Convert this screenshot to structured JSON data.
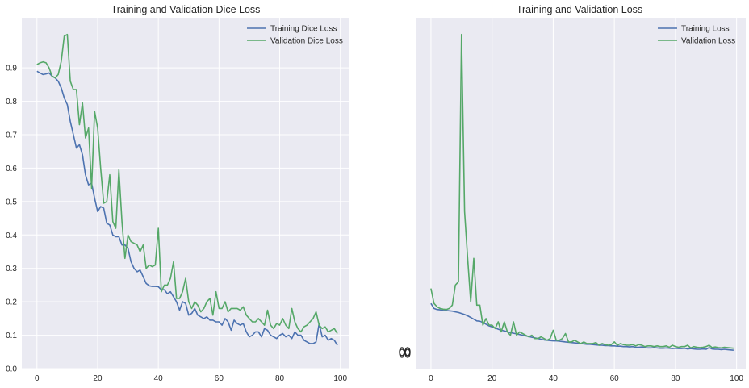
{
  "colors": {
    "background": "#EAEAF2",
    "training": "#4C72B0",
    "validation": "#55A868"
  },
  "chart_data": [
    {
      "type": "line",
      "title": "Training and Validation Dice Loss",
      "xlabel": "",
      "ylabel": "",
      "xlim": [
        -5,
        103
      ],
      "ylim": [
        0.0,
        1.05
      ],
      "xticks": [
        0,
        20,
        40,
        60,
        80,
        100
      ],
      "yticks": [
        0.0,
        0.1,
        0.2,
        0.3,
        0.4,
        0.5,
        0.6,
        0.7,
        0.8,
        0.9
      ],
      "ytick_labels": [
        "0.0",
        "0.1",
        "0.2",
        "0.3",
        "0.4",
        "0.5",
        "0.6",
        "0.7",
        "0.8",
        "0.9"
      ],
      "grid": true,
      "legend_position": "top-right",
      "series": [
        {
          "name": "Training Dice Loss",
          "color": "#4C72B0",
          "x": [
            0,
            1,
            2,
            3,
            4,
            5,
            6,
            7,
            8,
            9,
            10,
            11,
            12,
            13,
            14,
            15,
            16,
            17,
            18,
            19,
            20,
            21,
            22,
            23,
            24,
            25,
            26,
            27,
            28,
            29,
            30,
            31,
            32,
            33,
            34,
            35,
            36,
            37,
            38,
            39,
            40,
            41,
            42,
            43,
            44,
            45,
            46,
            47,
            48,
            49,
            50,
            51,
            52,
            53,
            54,
            55,
            56,
            57,
            58,
            59,
            60,
            61,
            62,
            63,
            64,
            65,
            66,
            67,
            68,
            69,
            70,
            71,
            72,
            73,
            74,
            75,
            76,
            77,
            78,
            79,
            80,
            81,
            82,
            83,
            84,
            85,
            86,
            87,
            88,
            89,
            90,
            91,
            92,
            93,
            94,
            95,
            96,
            97,
            98,
            99
          ],
          "y": [
            0.89,
            0.885,
            0.88,
            0.882,
            0.885,
            0.875,
            0.87,
            0.86,
            0.84,
            0.81,
            0.79,
            0.74,
            0.7,
            0.66,
            0.67,
            0.64,
            0.58,
            0.55,
            0.555,
            0.51,
            0.47,
            0.485,
            0.48,
            0.435,
            0.43,
            0.4,
            0.395,
            0.395,
            0.37,
            0.37,
            0.36,
            0.32,
            0.3,
            0.29,
            0.295,
            0.275,
            0.255,
            0.248,
            0.246,
            0.246,
            0.245,
            0.236,
            0.236,
            0.224,
            0.23,
            0.215,
            0.2,
            0.175,
            0.2,
            0.195,
            0.16,
            0.165,
            0.18,
            0.16,
            0.155,
            0.15,
            0.155,
            0.145,
            0.145,
            0.14,
            0.14,
            0.13,
            0.15,
            0.14,
            0.115,
            0.145,
            0.135,
            0.13,
            0.135,
            0.11,
            0.095,
            0.1,
            0.11,
            0.11,
            0.095,
            0.12,
            0.115,
            0.1,
            0.095,
            0.09,
            0.1,
            0.105,
            0.095,
            0.1,
            0.09,
            0.11,
            0.1,
            0.1,
            0.085,
            0.08,
            0.075,
            0.075,
            0.08,
            0.135,
            0.095,
            0.1,
            0.085,
            0.09,
            0.085,
            0.07
          ]
        },
        {
          "name": "Validation Dice Loss",
          "color": "#55A868",
          "x": [
            0,
            1,
            2,
            3,
            4,
            5,
            6,
            7,
            8,
            9,
            10,
            11,
            12,
            13,
            14,
            15,
            16,
            17,
            18,
            19,
            20,
            21,
            22,
            23,
            24,
            25,
            26,
            27,
            28,
            29,
            30,
            31,
            32,
            33,
            34,
            35,
            36,
            37,
            38,
            39,
            40,
            41,
            42,
            43,
            44,
            45,
            46,
            47,
            48,
            49,
            50,
            51,
            52,
            53,
            54,
            55,
            56,
            57,
            58,
            59,
            60,
            61,
            62,
            63,
            64,
            65,
            66,
            67,
            68,
            69,
            70,
            71,
            72,
            73,
            74,
            75,
            76,
            77,
            78,
            79,
            80,
            81,
            82,
            83,
            84,
            85,
            86,
            87,
            88,
            89,
            90,
            91,
            92,
            93,
            94,
            95,
            96,
            97,
            98,
            99
          ],
          "y": [
            0.91,
            0.915,
            0.918,
            0.915,
            0.9,
            0.875,
            0.87,
            0.88,
            0.92,
            0.995,
            1.0,
            0.86,
            0.835,
            0.835,
            0.73,
            0.795,
            0.69,
            0.72,
            0.54,
            0.77,
            0.72,
            0.6,
            0.495,
            0.5,
            0.58,
            0.44,
            0.42,
            0.595,
            0.44,
            0.33,
            0.4,
            0.38,
            0.375,
            0.37,
            0.35,
            0.37,
            0.3,
            0.31,
            0.305,
            0.31,
            0.42,
            0.23,
            0.25,
            0.25,
            0.27,
            0.32,
            0.21,
            0.21,
            0.23,
            0.27,
            0.2,
            0.18,
            0.2,
            0.19,
            0.17,
            0.18,
            0.2,
            0.21,
            0.16,
            0.23,
            0.18,
            0.18,
            0.2,
            0.17,
            0.18,
            0.18,
            0.18,
            0.175,
            0.185,
            0.16,
            0.15,
            0.14,
            0.14,
            0.15,
            0.14,
            0.13,
            0.175,
            0.13,
            0.12,
            0.135,
            0.13,
            0.15,
            0.13,
            0.12,
            0.18,
            0.14,
            0.12,
            0.11,
            0.125,
            0.13,
            0.14,
            0.15,
            0.17,
            0.13,
            0.12,
            0.125,
            0.11,
            0.115,
            0.12,
            0.105
          ]
        }
      ]
    },
    {
      "type": "line",
      "title": "Training and Validation Loss",
      "xlabel": "",
      "ylabel": "",
      "xlim": [
        -5,
        103
      ],
      "ylim": [
        0.0,
        1.05
      ],
      "xticks": [
        0,
        20,
        40,
        60,
        80,
        100
      ],
      "yticks": [],
      "grid": true,
      "legend_position": "top-right",
      "series": [
        {
          "name": "Training Loss",
          "color": "#4C72B0",
          "x": [
            0,
            1,
            2,
            3,
            4,
            5,
            6,
            7,
            8,
            9,
            10,
            11,
            12,
            13,
            14,
            15,
            16,
            17,
            18,
            19,
            20,
            21,
            22,
            23,
            24,
            25,
            26,
            27,
            28,
            29,
            30,
            31,
            32,
            33,
            34,
            35,
            36,
            37,
            38,
            39,
            40,
            41,
            42,
            43,
            44,
            45,
            46,
            47,
            48,
            49,
            50,
            51,
            52,
            53,
            54,
            55,
            56,
            57,
            58,
            59,
            60,
            61,
            62,
            63,
            64,
            65,
            66,
            67,
            68,
            69,
            70,
            71,
            72,
            73,
            74,
            75,
            76,
            77,
            78,
            79,
            80,
            81,
            82,
            83,
            84,
            85,
            86,
            87,
            88,
            89,
            90,
            91,
            92,
            93,
            94,
            95,
            96,
            97,
            98,
            99
          ],
          "y": [
            0.195,
            0.18,
            0.177,
            0.176,
            0.174,
            0.174,
            0.173,
            0.172,
            0.17,
            0.168,
            0.165,
            0.162,
            0.158,
            0.153,
            0.148,
            0.143,
            0.142,
            0.138,
            0.133,
            0.128,
            0.125,
            0.122,
            0.118,
            0.115,
            0.113,
            0.11,
            0.108,
            0.106,
            0.104,
            0.102,
            0.1,
            0.098,
            0.096,
            0.094,
            0.092,
            0.09,
            0.088,
            0.086,
            0.085,
            0.084,
            0.083,
            0.083,
            0.082,
            0.081,
            0.08,
            0.079,
            0.078,
            0.077,
            0.076,
            0.075,
            0.074,
            0.073,
            0.073,
            0.072,
            0.071,
            0.07,
            0.07,
            0.069,
            0.069,
            0.068,
            0.068,
            0.067,
            0.067,
            0.066,
            0.066,
            0.065,
            0.066,
            0.064,
            0.064,
            0.065,
            0.063,
            0.062,
            0.062,
            0.063,
            0.062,
            0.061,
            0.061,
            0.062,
            0.061,
            0.06,
            0.061,
            0.06,
            0.06,
            0.061,
            0.059,
            0.06,
            0.059,
            0.058,
            0.058,
            0.059,
            0.058,
            0.063,
            0.059,
            0.058,
            0.058,
            0.057,
            0.058,
            0.057,
            0.056,
            0.055
          ]
        },
        {
          "name": "Validation Loss",
          "color": "#55A868",
          "x": [
            0,
            1,
            2,
            3,
            4,
            5,
            6,
            7,
            8,
            9,
            10,
            11,
            12,
            13,
            14,
            15,
            16,
            17,
            18,
            19,
            20,
            21,
            22,
            23,
            24,
            25,
            26,
            27,
            28,
            29,
            30,
            31,
            32,
            33,
            34,
            35,
            36,
            37,
            38,
            39,
            40,
            41,
            42,
            43,
            44,
            45,
            46,
            47,
            48,
            49,
            50,
            51,
            52,
            53,
            54,
            55,
            56,
            57,
            58,
            59,
            60,
            61,
            62,
            63,
            64,
            65,
            66,
            67,
            68,
            69,
            70,
            71,
            72,
            73,
            74,
            75,
            76,
            77,
            78,
            79,
            80,
            81,
            82,
            83,
            84,
            85,
            86,
            87,
            88,
            89,
            90,
            91,
            92,
            93,
            94,
            95,
            96,
            97,
            98,
            99
          ],
          "y": [
            0.24,
            0.195,
            0.185,
            0.18,
            0.178,
            0.177,
            0.18,
            0.19,
            0.25,
            0.26,
            1.0,
            0.47,
            0.33,
            0.2,
            0.33,
            0.19,
            0.19,
            0.13,
            0.15,
            0.13,
            0.13,
            0.12,
            0.14,
            0.11,
            0.14,
            0.11,
            0.1,
            0.14,
            0.1,
            0.11,
            0.105,
            0.1,
            0.095,
            0.1,
            0.09,
            0.09,
            0.095,
            0.09,
            0.085,
            0.09,
            0.115,
            0.085,
            0.085,
            0.09,
            0.105,
            0.08,
            0.08,
            0.085,
            0.08,
            0.075,
            0.08,
            0.075,
            0.075,
            0.075,
            0.078,
            0.07,
            0.075,
            0.072,
            0.07,
            0.072,
            0.08,
            0.07,
            0.075,
            0.072,
            0.07,
            0.07,
            0.072,
            0.068,
            0.072,
            0.07,
            0.066,
            0.068,
            0.068,
            0.066,
            0.068,
            0.066,
            0.066,
            0.068,
            0.064,
            0.07,
            0.066,
            0.064,
            0.066,
            0.066,
            0.07,
            0.062,
            0.066,
            0.064,
            0.063,
            0.064,
            0.066,
            0.07,
            0.063,
            0.065,
            0.063,
            0.062,
            0.064,
            0.063,
            0.062,
            0.061
          ]
        }
      ]
    }
  ]
}
